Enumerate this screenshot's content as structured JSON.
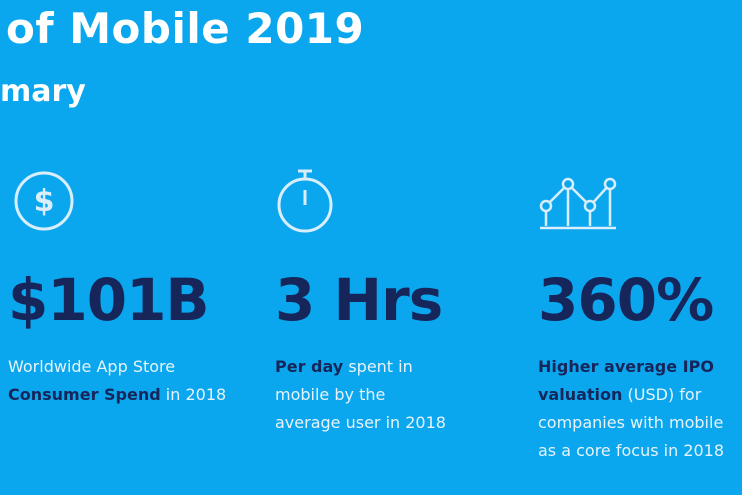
{
  "header": {
    "title": "of Mobile 2019",
    "subtitle": "mary"
  },
  "stats": [
    {
      "value": "$101B",
      "description": [
        {
          "text": "Worldwide App Store ",
          "bold": false
        },
        {
          "text": "Consumer Spend",
          "bold": true
        },
        {
          "text": " in 2018",
          "bold": false
        }
      ]
    },
    {
      "value": "3 Hrs",
      "description": [
        {
          "text": "Per day",
          "bold": true
        },
        {
          "text": " spent in mobile by the average user in 2018",
          "bold": false
        }
      ]
    },
    {
      "value": "360%",
      "description": [
        {
          "text": "Higher average IPO valuation",
          "bold": true
        },
        {
          "text": " (USD) for companies with mobile as a core focus in 2018",
          "bold": false
        }
      ]
    }
  ]
}
